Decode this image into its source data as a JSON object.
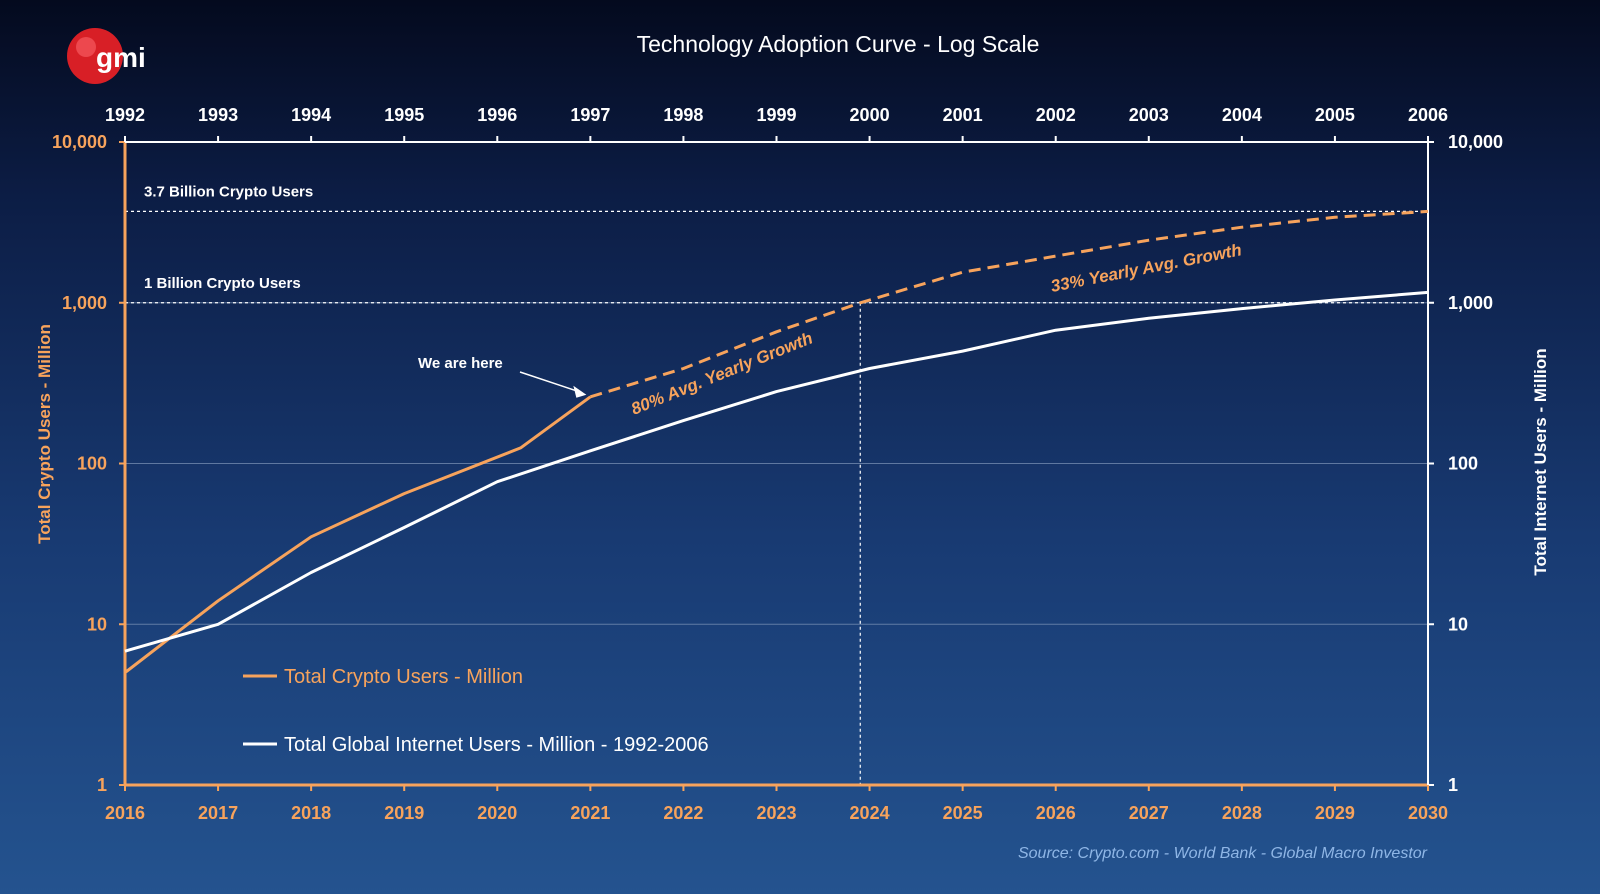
{
  "logo": {
    "text": "gmi"
  },
  "source": "Source:   Crypto.com  - World Bank - Global Macro Investor",
  "colors": {
    "crypto": "#f7a35c",
    "internet": "#ffffff",
    "grid": "#7f95b8"
  },
  "chart_data": {
    "type": "line",
    "title": "Technology Adoption Curve  - Log Scale",
    "y_scale": "log",
    "ylim": [
      1,
      10000
    ],
    "y_ticks": [
      "1",
      "10",
      "100",
      "1,000",
      "10,000"
    ],
    "y_tick_values": [
      1,
      10,
      100,
      1000,
      10000
    ],
    "ylabel_left": "Total Crypto Users - Million",
    "ylabel_right": "Total Internet Users - Million",
    "x_bottom_ticks": [
      "2016",
      "2017",
      "2018",
      "2019",
      "2020",
      "2021",
      "2022",
      "2023",
      "2024",
      "2025",
      "2026",
      "2027",
      "2028",
      "2029",
      "2030"
    ],
    "x_top_ticks": [
      "1992",
      "1993",
      "1994",
      "1995",
      "1996",
      "1997",
      "1998",
      "1999",
      "2000",
      "2001",
      "2002",
      "2003",
      "2004",
      "2005",
      "2006"
    ],
    "grid": true,
    "legend_position": "bottom-left",
    "series": [
      {
        "name": "Total Crypto Users - Million",
        "axis": "bottom",
        "color": "#f7a35c",
        "style": "solid",
        "x": [
          2016,
          2017,
          2018,
          2019,
          2020.25,
          2021
        ],
        "y": [
          5,
          14,
          35,
          65,
          125,
          260
        ]
      },
      {
        "name": "",
        "axis": "bottom",
        "color": "#f7a35c",
        "style": "dashed",
        "x": [
          2021,
          2022,
          2023,
          2023.9,
          2025,
          2026,
          2027,
          2028,
          2029,
          2030
        ],
        "y": [
          260,
          390,
          660,
          1000,
          1550,
          1950,
          2450,
          2950,
          3400,
          3700
        ]
      },
      {
        "name": "Total Global Internet Users - Million - 1992-2006",
        "axis": "top",
        "color": "#ffffff",
        "style": "solid",
        "x": [
          1992,
          1993,
          1994,
          1995,
          1996,
          1997,
          1998,
          1999,
          2000,
          2001,
          2002,
          2003,
          2004,
          2005,
          2006
        ],
        "y": [
          6.8,
          10,
          21,
          40,
          77,
          120,
          185,
          280,
          390,
          500,
          675,
          800,
          920,
          1040,
          1160
        ]
      }
    ],
    "reference_lines": [
      {
        "label": "3.7 Billion Crypto Users",
        "y": 3700
      },
      {
        "label": "1 Billion Crypto Users",
        "y": 1000
      }
    ],
    "vertical_reference": {
      "x": 2023.9,
      "from_y": 1,
      "to_y": 1000
    },
    "annotations": [
      {
        "id": "we-are-here",
        "text": "We are here",
        "x": 2021,
        "y": 260
      },
      {
        "id": "growth-80",
        "text": "80% Avg. Yearly Growth"
      },
      {
        "id": "growth-33",
        "text": "33% Yearly Avg. Growth"
      }
    ]
  }
}
